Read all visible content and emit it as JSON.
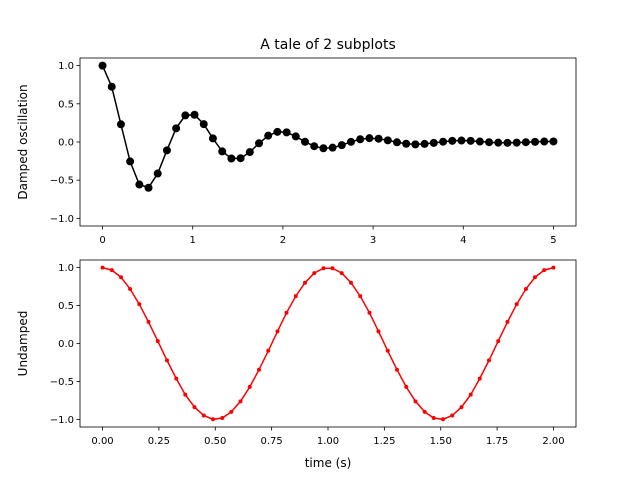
{
  "title": "A tale of 2 subplots",
  "chart_data": [
    {
      "type": "line",
      "ylabel": "Damped oscillation",
      "xlabel": "",
      "xlim": [
        -0.25,
        5.25
      ],
      "ylim": [
        -1.1,
        1.1
      ],
      "xticks": [
        0,
        1,
        2,
        3,
        4,
        5
      ],
      "xtick_labels": [
        "0",
        "1",
        "2",
        "3",
        "4",
        "5"
      ],
      "yticks": [
        1.0,
        0.5,
        0.0,
        -0.5,
        -1.0
      ],
      "ytick_labels": [
        "1.0",
        "0.5",
        "0.0",
        "−0.5",
        "−1.0"
      ],
      "grid": false,
      "color": "#000000",
      "marker": "circle",
      "x": [
        0,
        0.102,
        0.204,
        0.306,
        0.408,
        0.51,
        0.612,
        0.714,
        0.816,
        0.918,
        1.02,
        1.122,
        1.224,
        1.327,
        1.429,
        1.531,
        1.633,
        1.735,
        1.837,
        1.939,
        2.041,
        2.143,
        2.245,
        2.347,
        2.449,
        2.551,
        2.653,
        2.755,
        2.857,
        2.959,
        3.061,
        3.163,
        3.265,
        3.367,
        3.469,
        3.571,
        3.673,
        3.776,
        3.878,
        3.98,
        4.082,
        4.184,
        4.286,
        4.388,
        4.49,
        4.592,
        4.694,
        4.796,
        4.898,
        5.0
      ],
      "y": [
        1.0,
        0.724,
        0.232,
        -0.254,
        -0.557,
        -0.599,
        -0.413,
        -0.109,
        0.179,
        0.348,
        0.357,
        0.234,
        0.047,
        -0.123,
        -0.216,
        -0.212,
        -0.132,
        -0.017,
        0.083,
        0.133,
        0.126,
        0.073,
        0.003,
        -0.055,
        -0.082,
        -0.074,
        -0.041,
        0.002,
        0.036,
        0.05,
        0.043,
        0.022,
        -0.004,
        -0.023,
        -0.031,
        -0.025,
        -0.012,
        0.004,
        0.015,
        0.019,
        0.015,
        0.006,
        -0.003,
        -0.009,
        -0.011,
        -0.008,
        -0.003,
        0.002,
        0.006,
        0.007
      ]
    },
    {
      "type": "line",
      "ylabel": "Undamped",
      "xlabel": "time (s)",
      "xlim": [
        -0.1,
        2.1
      ],
      "ylim": [
        -1.1,
        1.1
      ],
      "xticks": [
        0,
        0.25,
        0.5,
        0.75,
        1.0,
        1.25,
        1.5,
        1.75,
        2.0
      ],
      "xtick_labels": [
        "0.00",
        "0.25",
        "0.50",
        "0.75",
        "1.00",
        "1.25",
        "1.50",
        "1.75",
        "2.00"
      ],
      "yticks": [
        1.0,
        0.5,
        0.0,
        -0.5,
        -1.0
      ],
      "ytick_labels": [
        "1.0",
        "0.5",
        "0.0",
        "−0.5",
        "−1.0"
      ],
      "grid": false,
      "color": "#ff0000",
      "marker": "point",
      "x": [
        0,
        0.041,
        0.082,
        0.122,
        0.163,
        0.204,
        0.245,
        0.286,
        0.327,
        0.367,
        0.408,
        0.449,
        0.49,
        0.531,
        0.571,
        0.612,
        0.653,
        0.694,
        0.735,
        0.776,
        0.816,
        0.857,
        0.898,
        0.939,
        0.98,
        1.02,
        1.061,
        1.102,
        1.143,
        1.184,
        1.224,
        1.265,
        1.306,
        1.347,
        1.388,
        1.429,
        1.469,
        1.51,
        1.551,
        1.592,
        1.633,
        1.673,
        1.714,
        1.755,
        1.796,
        1.837,
        1.878,
        1.918,
        1.959,
        2.0
      ],
      "y": [
        1.0,
        0.967,
        0.872,
        0.718,
        0.518,
        0.285,
        0.032,
        -0.223,
        -0.463,
        -0.674,
        -0.838,
        -0.949,
        -0.998,
        -0.982,
        -0.901,
        -0.762,
        -0.572,
        -0.345,
        -0.096,
        0.16,
        0.405,
        0.624,
        0.801,
        0.927,
        0.992,
        0.992,
        0.927,
        0.801,
        0.624,
        0.405,
        0.16,
        -0.096,
        -0.345,
        -0.572,
        -0.762,
        -0.901,
        -0.982,
        -0.998,
        -0.949,
        -0.838,
        -0.674,
        -0.463,
        -0.223,
        0.032,
        0.285,
        0.518,
        0.718,
        0.872,
        0.967,
        1.0
      ]
    }
  ]
}
